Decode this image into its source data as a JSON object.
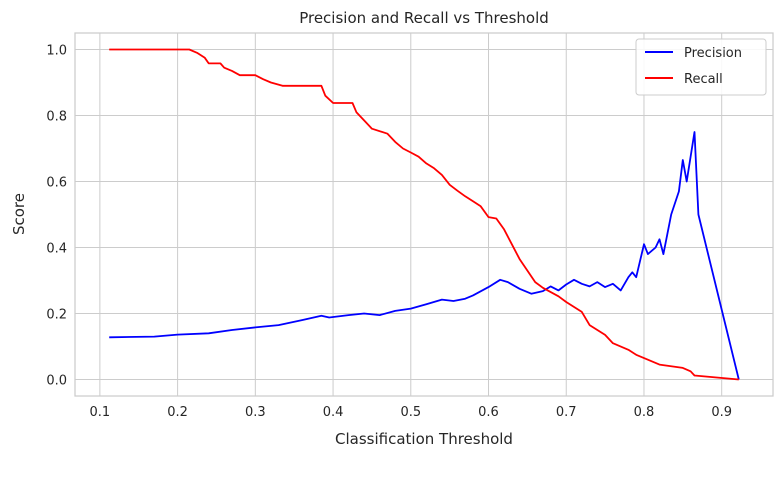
{
  "chart_data": {
    "type": "line",
    "title": "Precision and Recall vs Threshold",
    "xlabel": "Classification Threshold",
    "ylabel": "Score",
    "xlim": [
      0.068,
      0.966
    ],
    "ylim": [
      -0.05,
      1.05
    ],
    "xticks": [
      "0.1",
      "0.2",
      "0.3",
      "0.4",
      "0.5",
      "0.6",
      "0.7",
      "0.8",
      "0.9"
    ],
    "xtick_values": [
      0.1,
      0.2,
      0.3,
      0.4,
      0.5,
      0.6,
      0.7,
      0.8,
      0.9
    ],
    "yticks": [
      "0.0",
      "0.2",
      "0.4",
      "0.6",
      "0.8",
      "1.0"
    ],
    "ytick_values": [
      0.0,
      0.2,
      0.4,
      0.6,
      0.8,
      1.0
    ],
    "grid": true,
    "legend_position": "top-right",
    "series": [
      {
        "name": "Precision",
        "color": "#0000ff",
        "points": [
          [
            0.112,
            0.128
          ],
          [
            0.17,
            0.13
          ],
          [
            0.2,
            0.136
          ],
          [
            0.24,
            0.14
          ],
          [
            0.27,
            0.15
          ],
          [
            0.3,
            0.158
          ],
          [
            0.33,
            0.165
          ],
          [
            0.36,
            0.18
          ],
          [
            0.385,
            0.193
          ],
          [
            0.395,
            0.188
          ],
          [
            0.42,
            0.195
          ],
          [
            0.44,
            0.2
          ],
          [
            0.46,
            0.195
          ],
          [
            0.48,
            0.208
          ],
          [
            0.5,
            0.215
          ],
          [
            0.52,
            0.228
          ],
          [
            0.54,
            0.242
          ],
          [
            0.555,
            0.238
          ],
          [
            0.57,
            0.245
          ],
          [
            0.58,
            0.255
          ],
          [
            0.6,
            0.28
          ],
          [
            0.615,
            0.302
          ],
          [
            0.625,
            0.295
          ],
          [
            0.64,
            0.275
          ],
          [
            0.655,
            0.26
          ],
          [
            0.67,
            0.268
          ],
          [
            0.68,
            0.282
          ],
          [
            0.69,
            0.27
          ],
          [
            0.7,
            0.288
          ],
          [
            0.71,
            0.302
          ],
          [
            0.72,
            0.29
          ],
          [
            0.73,
            0.282
          ],
          [
            0.74,
            0.295
          ],
          [
            0.75,
            0.28
          ],
          [
            0.76,
            0.29
          ],
          [
            0.77,
            0.27
          ],
          [
            0.78,
            0.31
          ],
          [
            0.785,
            0.325
          ],
          [
            0.79,
            0.31
          ],
          [
            0.795,
            0.36
          ],
          [
            0.8,
            0.41
          ],
          [
            0.805,
            0.38
          ],
          [
            0.815,
            0.4
          ],
          [
            0.82,
            0.425
          ],
          [
            0.825,
            0.38
          ],
          [
            0.83,
            0.44
          ],
          [
            0.835,
            0.5
          ],
          [
            0.845,
            0.57
          ],
          [
            0.85,
            0.665
          ],
          [
            0.855,
            0.6
          ],
          [
            0.865,
            0.75
          ],
          [
            0.87,
            0.5
          ],
          [
            0.922,
            0.0
          ]
        ]
      },
      {
        "name": "Recall",
        "color": "#ff0000",
        "points": [
          [
            0.112,
            1.0
          ],
          [
            0.215,
            1.0
          ],
          [
            0.225,
            0.99
          ],
          [
            0.235,
            0.975
          ],
          [
            0.24,
            0.958
          ],
          [
            0.255,
            0.958
          ],
          [
            0.26,
            0.945
          ],
          [
            0.27,
            0.935
          ],
          [
            0.28,
            0.922
          ],
          [
            0.3,
            0.922
          ],
          [
            0.31,
            0.91
          ],
          [
            0.32,
            0.9
          ],
          [
            0.335,
            0.89
          ],
          [
            0.385,
            0.89
          ],
          [
            0.39,
            0.86
          ],
          [
            0.4,
            0.838
          ],
          [
            0.425,
            0.838
          ],
          [
            0.43,
            0.81
          ],
          [
            0.44,
            0.785
          ],
          [
            0.45,
            0.76
          ],
          [
            0.47,
            0.745
          ],
          [
            0.48,
            0.72
          ],
          [
            0.49,
            0.7
          ],
          [
            0.5,
            0.688
          ],
          [
            0.51,
            0.675
          ],
          [
            0.52,
            0.655
          ],
          [
            0.53,
            0.64
          ],
          [
            0.54,
            0.62
          ],
          [
            0.55,
            0.59
          ],
          [
            0.56,
            0.572
          ],
          [
            0.57,
            0.555
          ],
          [
            0.58,
            0.54
          ],
          [
            0.59,
            0.525
          ],
          [
            0.6,
            0.492
          ],
          [
            0.61,
            0.488
          ],
          [
            0.62,
            0.455
          ],
          [
            0.63,
            0.41
          ],
          [
            0.64,
            0.365
          ],
          [
            0.65,
            0.33
          ],
          [
            0.66,
            0.295
          ],
          [
            0.67,
            0.278
          ],
          [
            0.69,
            0.252
          ],
          [
            0.7,
            0.235
          ],
          [
            0.72,
            0.205
          ],
          [
            0.73,
            0.165
          ],
          [
            0.75,
            0.135
          ],
          [
            0.76,
            0.11
          ],
          [
            0.78,
            0.09
          ],
          [
            0.79,
            0.075
          ],
          [
            0.8,
            0.065
          ],
          [
            0.82,
            0.045
          ],
          [
            0.85,
            0.035
          ],
          [
            0.86,
            0.025
          ],
          [
            0.865,
            0.012
          ],
          [
            0.922,
            0.0
          ]
        ]
      }
    ]
  }
}
